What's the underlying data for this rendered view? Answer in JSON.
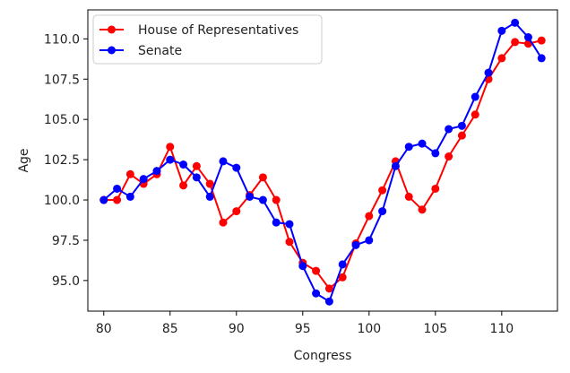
{
  "chart_data": {
    "type": "line",
    "title": "",
    "xlabel": "Congress",
    "ylabel": "Age",
    "xlim": [
      78.8,
      114.2
    ],
    "ylim": [
      93.1,
      111.8
    ],
    "xticks": [
      80,
      85,
      90,
      95,
      100,
      105,
      110
    ],
    "xtick_labels": [
      "80",
      "85",
      "90",
      "95",
      "100",
      "105",
      "110"
    ],
    "yticks": [
      95.0,
      97.5,
      100.0,
      102.5,
      105.0,
      107.5,
      110.0
    ],
    "ytick_labels": [
      "95.0",
      "97.5",
      "100.0",
      "102.5",
      "105.0",
      "107.5",
      "110.0"
    ],
    "grid": false,
    "legend": {
      "placement": "top-left"
    },
    "x": [
      80,
      81,
      82,
      83,
      84,
      85,
      86,
      87,
      88,
      89,
      90,
      91,
      92,
      93,
      94,
      95,
      96,
      97,
      98,
      99,
      100,
      101,
      102,
      103,
      104,
      105,
      106,
      107,
      108,
      109,
      110,
      111,
      112,
      113
    ],
    "series": [
      {
        "name": "House of Representatives",
        "color": "#ff0000",
        "values": [
          100.0,
          100.0,
          101.6,
          101.0,
          101.6,
          103.3,
          100.9,
          102.1,
          101.0,
          98.6,
          99.3,
          100.3,
          101.4,
          100.0,
          97.4,
          96.1,
          95.6,
          94.5,
          95.2,
          97.3,
          99.0,
          100.6,
          102.4,
          100.2,
          99.4,
          100.7,
          102.7,
          104.0,
          105.3,
          107.5,
          108.8,
          109.8,
          109.7,
          109.9
        ]
      },
      {
        "name": "Senate",
        "color": "#0000ff",
        "values": [
          100.0,
          100.7,
          100.2,
          101.3,
          101.8,
          102.5,
          102.2,
          101.4,
          100.2,
          102.4,
          102.0,
          100.2,
          100.0,
          98.6,
          98.5,
          95.9,
          94.2,
          93.7,
          96.0,
          97.2,
          97.5,
          99.3,
          102.1,
          103.3,
          103.5,
          102.9,
          104.4,
          104.6,
          106.4,
          107.9,
          110.5,
          111.0,
          110.1,
          108.8
        ]
      }
    ]
  }
}
